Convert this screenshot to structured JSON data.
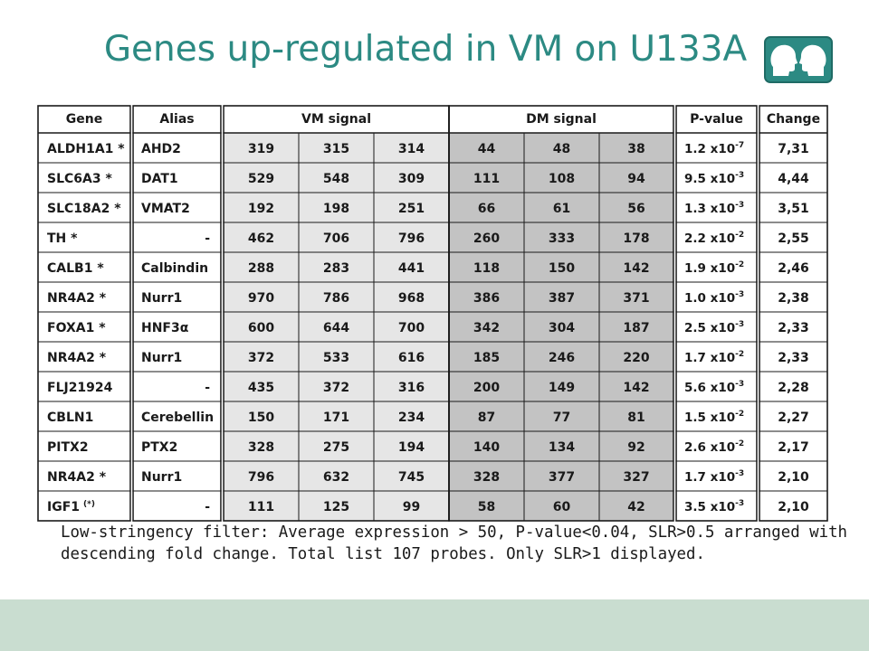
{
  "title": "Genes up-regulated in VM on U133A",
  "logo": {
    "icon": "two-heads-logo-icon",
    "color": "#2c8a83"
  },
  "table": {
    "headers": {
      "gene": "Gene",
      "alias": "Alias",
      "vm": "VM signal",
      "dm": "DM signal",
      "pvalue": "P-value",
      "change": "Change"
    },
    "rows": [
      {
        "gene": "ALDH1A1 *",
        "alias": "AHD2",
        "vm": [
          "319",
          "315",
          "314"
        ],
        "dm": [
          "44",
          "48",
          "38"
        ],
        "p_mant": "1.2",
        "p_exp": "-7",
        "change": "7,31"
      },
      {
        "gene": "SLC6A3 *",
        "alias": "DAT1",
        "vm": [
          "529",
          "548",
          "309"
        ],
        "dm": [
          "111",
          "108",
          "94"
        ],
        "p_mant": "9.5",
        "p_exp": "-3",
        "change": "4,44"
      },
      {
        "gene": "SLC18A2 *",
        "alias": "VMAT2",
        "vm": [
          "192",
          "198",
          "251"
        ],
        "dm": [
          "66",
          "61",
          "56"
        ],
        "p_mant": "1.3",
        "p_exp": "-3",
        "change": "3,51"
      },
      {
        "gene": "TH *",
        "alias": "-",
        "vm": [
          "462",
          "706",
          "796"
        ],
        "dm": [
          "260",
          "333",
          "178"
        ],
        "p_mant": "2.2",
        "p_exp": "-2",
        "change": "2,55"
      },
      {
        "gene": "CALB1 *",
        "alias": "Calbindin",
        "vm": [
          "288",
          "283",
          "441"
        ],
        "dm": [
          "118",
          "150",
          "142"
        ],
        "p_mant": "1.9",
        "p_exp": "-2",
        "change": "2,46"
      },
      {
        "gene": "NR4A2 *",
        "alias": "Nurr1",
        "vm": [
          "970",
          "786",
          "968"
        ],
        "dm": [
          "386",
          "387",
          "371"
        ],
        "p_mant": "1.0",
        "p_exp": "-3",
        "change": "2,38"
      },
      {
        "gene": "FOXA1 *",
        "alias": "HNF3α",
        "vm": [
          "600",
          "644",
          "700"
        ],
        "dm": [
          "342",
          "304",
          "187"
        ],
        "p_mant": "2.5",
        "p_exp": "-3",
        "change": "2,33"
      },
      {
        "gene": "NR4A2 *",
        "alias": "Nurr1",
        "vm": [
          "372",
          "533",
          "616"
        ],
        "dm": [
          "185",
          "246",
          "220"
        ],
        "p_mant": "1.7",
        "p_exp": "-2",
        "change": "2,33"
      },
      {
        "gene": "FLJ21924",
        "alias": "-",
        "vm": [
          "435",
          "372",
          "316"
        ],
        "dm": [
          "200",
          "149",
          "142"
        ],
        "p_mant": "5.6",
        "p_exp": "-3",
        "change": "2,28"
      },
      {
        "gene": "CBLN1",
        "alias": "Cerebellin",
        "vm": [
          "150",
          "171",
          "234"
        ],
        "dm": [
          "87",
          "77",
          "81"
        ],
        "p_mant": "1.5",
        "p_exp": "-2",
        "change": "2,27"
      },
      {
        "gene": "PITX2",
        "alias": "PTX2",
        "vm": [
          "328",
          "275",
          "194"
        ],
        "dm": [
          "140",
          "134",
          "92"
        ],
        "p_mant": "2.6",
        "p_exp": "-2",
        "change": "2,17"
      },
      {
        "gene": "NR4A2 *",
        "alias": "Nurr1",
        "vm": [
          "796",
          "632",
          "745"
        ],
        "dm": [
          "328",
          "377",
          "327"
        ],
        "p_mant": "1.7",
        "p_exp": "-3",
        "change": "2,10"
      },
      {
        "gene": "IGF1",
        "gene_suffix": "(*)",
        "alias": "-",
        "vm": [
          "111",
          "125",
          "99"
        ],
        "dm": [
          "58",
          "60",
          "42"
        ],
        "p_mant": "3.5",
        "p_exp": "-3",
        "change": "2,10"
      }
    ],
    "colors": {
      "vm_fill": "#e6e6e6",
      "dm_fill": "#c3c3c3",
      "border": "#1a1a1a"
    }
  },
  "footnote": "Low-stringency filter: Average expression > 50, P-value<0.04, SLR>0.5 arranged with descending fold change. Total list 107 probes. Only SLR>1 displayed.",
  "footer_color": "#c9ddd0"
}
